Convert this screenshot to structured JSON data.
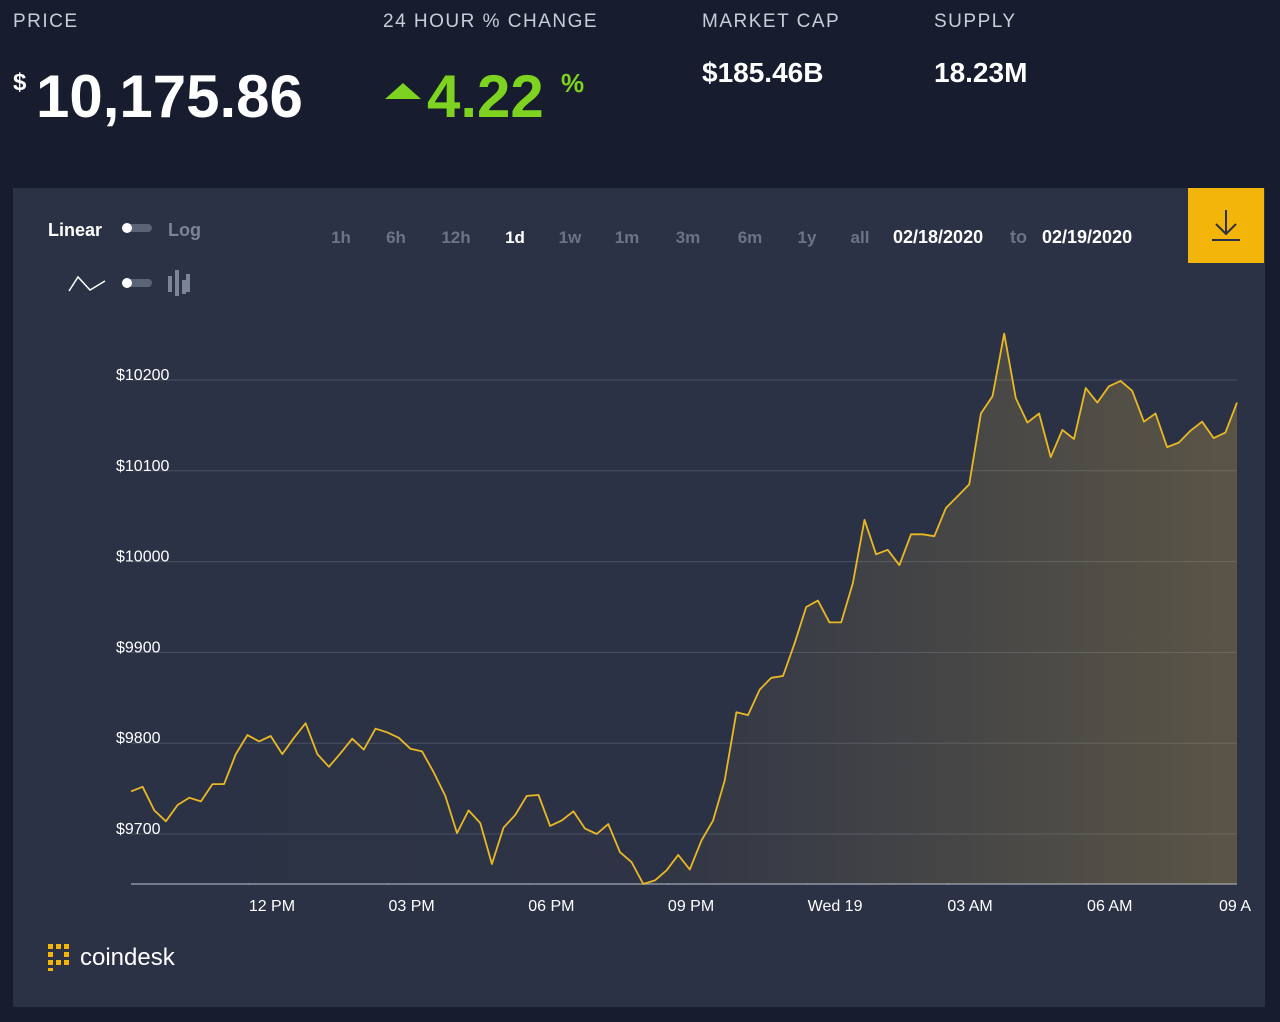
{
  "header": {
    "price": {
      "label": "PRICE",
      "currency": "$",
      "value": "10,175.86"
    },
    "change": {
      "label": "24 HOUR % CHANGE",
      "value": "4.22",
      "unit": "%"
    },
    "market_cap": {
      "label": "MARKET CAP",
      "value": "$185.46B"
    },
    "supply": {
      "label": "SUPPLY",
      "value": "18.23M"
    }
  },
  "controls": {
    "scale_linear": "Linear",
    "scale_log": "Log",
    "ranges": [
      "1h",
      "6h",
      "12h",
      "1d",
      "1w",
      "1m",
      "3m",
      "6m",
      "1y",
      "all"
    ],
    "date_from": "02/18/2020",
    "date_sep": "to",
    "date_to": "02/19/2020"
  },
  "brand": "coindesk",
  "chart_data": {
    "type": "line",
    "color": "#e9b824",
    "grid": true,
    "x": [
      9.47,
      9.72,
      9.97,
      10.22,
      10.47,
      10.72,
      10.97,
      11.22,
      11.47,
      11.72,
      11.97,
      12.22,
      12.47,
      12.72,
      12.97,
      13.22,
      13.47,
      13.72,
      13.97,
      14.22,
      14.47,
      14.72,
      14.97,
      15.22,
      15.47,
      15.72,
      15.97,
      16.22,
      16.47,
      16.72,
      16.97,
      17.22,
      17.47,
      17.72,
      17.97,
      18.22,
      18.47,
      18.72,
      18.97,
      19.22,
      19.47,
      19.72,
      19.97,
      20.22,
      20.47,
      20.72,
      20.97,
      21.22,
      21.47,
      21.72,
      21.97,
      22.22,
      22.47,
      22.72,
      22.97,
      23.22,
      23.47,
      23.72,
      23.97,
      24.22,
      24.47,
      24.72,
      24.97,
      25.22,
      25.47,
      25.72,
      25.97,
      26.22,
      26.47,
      26.72,
      26.97,
      27.22,
      27.47,
      27.72,
      27.97,
      28.22,
      28.47,
      28.72,
      28.97,
      29.22,
      29.47,
      29.72,
      29.97,
      30.22,
      30.47,
      30.72,
      30.97,
      31.22,
      31.47,
      31.72,
      31.97,
      32.22,
      32.47,
      32.72,
      32.97,
      33.22
    ],
    "values": [
      9747,
      9752,
      9726,
      9714,
      9732,
      9740,
      9736,
      9755,
      9755,
      9788,
      9809,
      9802,
      9808,
      9788,
      9806,
      9822,
      9788,
      9774,
      9789,
      9805,
      9793,
      9816,
      9812,
      9806,
      9794,
      9791,
      9768,
      9742,
      9701,
      9726,
      9712,
      9667,
      9707,
      9721,
      9742,
      9743,
      9709,
      9715,
      9725,
      9706,
      9700,
      9711,
      9680,
      9669,
      9645,
      9649,
      9660,
      9677,
      9661,
      9693,
      9715,
      9759,
      9834,
      9831,
      9859,
      9872,
      9874,
      9910,
      9950,
      9957,
      9933,
      9933,
      9976,
      10046,
      10008,
      10013,
      9996,
      10030,
      10030,
      10028,
      10059,
      10072,
      10085,
      10163,
      10182,
      10251,
      10180,
      10153,
      10163,
      10115,
      10145,
      10135,
      10191,
      10175,
      10193,
      10199,
      10188,
      10154,
      10163,
      10126,
      10131,
      10144,
      10154,
      10136,
      10142,
      10175
    ],
    "xlim": [
      9.47,
      33.22
    ],
    "xticks": [
      {
        "value": 12,
        "label": "12 PM"
      },
      {
        "value": 15,
        "label": "03 PM"
      },
      {
        "value": 18,
        "label": "06 PM"
      },
      {
        "value": 21,
        "label": "09 PM"
      },
      {
        "value": 24,
        "label": "Wed 19"
      },
      {
        "value": 27,
        "label": "03 AM"
      },
      {
        "value": 30,
        "label": "06 AM"
      },
      {
        "value": 33,
        "label": "09 A"
      }
    ],
    "ylim": [
      9645,
      10266
    ],
    "yticks": [
      {
        "value": 9700,
        "label": "$9700"
      },
      {
        "value": 9800,
        "label": "$9800"
      },
      {
        "value": 9900,
        "label": "$9900"
      },
      {
        "value": 10000,
        "label": "$10000"
      },
      {
        "value": 10100,
        "label": "$10100"
      },
      {
        "value": 10200,
        "label": "$10200"
      }
    ]
  }
}
